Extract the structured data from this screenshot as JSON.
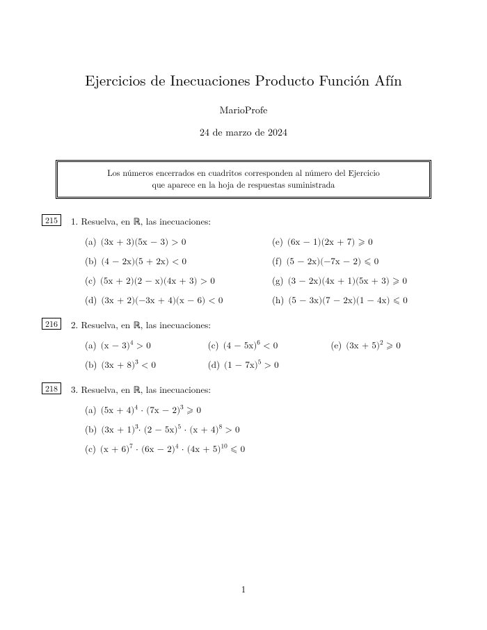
{
  "title": "Ejercicios de Inecuaciones Producto Función Afín",
  "author": "MarioProfe",
  "date": "24 de marzo de 2024",
  "notice_line1": "Los números encerrados en cuadritos corresponden al número del Ejercicio",
  "notice_line2": "que aparece en la hoja de respuestas suministrada",
  "page_number": "1",
  "ex1": {
    "boxnum": "215",
    "num": "1.",
    "prompt": "Resuelva, en ℝ, las inecuaciones:",
    "a_l": "(a)",
    "a": "(3x + 3)(5x − 3) > 0",
    "b_l": "(b)",
    "b": "(4 − 2x)(5 + 2x) < 0",
    "c_l": "(c)",
    "c": "(5x + 2)(2 − x)(4x + 3) > 0",
    "d_l": "(d)",
    "d": "(3x + 2)(−3x + 4)(x − 6) < 0",
    "e_l": "(e)",
    "e": "(6x − 1)(2x + 7) ⩾ 0",
    "f_l": "(f)",
    "f": "(5 − 2x)(−7x − 2) ⩽ 0",
    "g_l": "(g)",
    "g": "(3 − 2x)(4x + 1)(5x + 3) ⩾ 0",
    "h_l": "(h)",
    "h": "(5 − 3x)(7 − 2x)(1 − 4x) ⩽ 0"
  },
  "ex2": {
    "boxnum": "216",
    "num": "2.",
    "prompt": "Resuelva, en ℝ, las inecuaciones:",
    "a_l": "(a)",
    "a_pre": "(x − 3)",
    "a_sup": "4",
    "a_post": " > 0",
    "b_l": "(b)",
    "b_pre": "(3x + 8)",
    "b_sup": "3",
    "b_post": " < 0",
    "c_l": "(c)",
    "c_pre": "(4 − 5x)",
    "c_sup": "6",
    "c_post": " < 0",
    "d_l": "(d)",
    "d_pre": "(1 − 7x)",
    "d_sup": "5",
    "d_post": " > 0",
    "e_l": "(e)",
    "e_pre": "(3x + 5)",
    "e_sup": "2",
    "e_post": " ⩾ 0"
  },
  "ex3": {
    "boxnum": "218",
    "num": "3.",
    "prompt": "Resuelva, en ℝ, las inecuaciones:",
    "a_l": "(a)",
    "a_p1": "(5x + 4)",
    "a_s1": "4",
    "a_mid1": " · (7x − 2)",
    "a_s2": "3",
    "a_post": " ⩾ 0",
    "b_l": "(b)",
    "b_p1": "(3x + 1)",
    "b_s1": "3",
    "b_mid1": "· (2 − 5x)",
    "b_s2": "5",
    "b_mid2": " · (x + 4)",
    "b_s3": "8",
    "b_post": " > 0",
    "c_l": "(c)",
    "c_p1": "(x + 6)",
    "c_s1": "7",
    "c_mid1": " · (6x − 2)",
    "c_s2": "4",
    "c_mid2": " · (4x + 5)",
    "c_s3": "10",
    "c_post": " ⩽ 0"
  }
}
